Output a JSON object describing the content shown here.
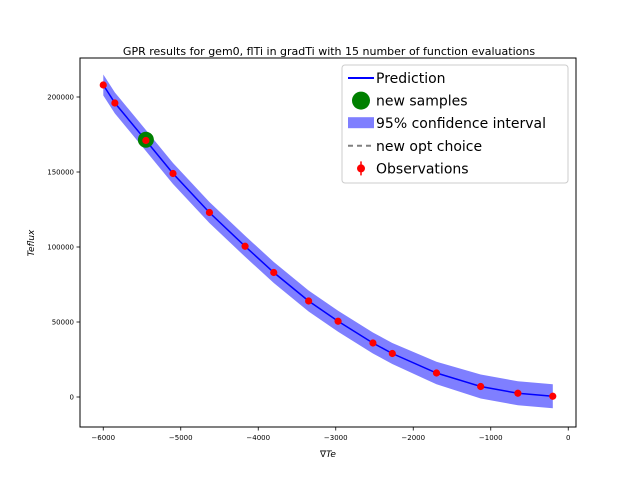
{
  "chart_data": {
    "type": "line",
    "title": "GPR results for gem0, flTi in gradTi with 15 number of function evaluations",
    "xlabel": "∇Te",
    "ylabel": "Teflux",
    "xlim": [
      -6300,
      100
    ],
    "ylim": [
      -20000,
      226000
    ],
    "xticks": [
      -6000,
      -5000,
      -4000,
      -3000,
      -2000,
      -1000,
      0
    ],
    "yticks": [
      0,
      50000,
      100000,
      150000,
      200000
    ],
    "legend_position": "top-right",
    "legend": [
      {
        "label": "Prediction",
        "kind": "line",
        "color": "#0000ff"
      },
      {
        "label": "new samples",
        "kind": "marker",
        "color": "#008000"
      },
      {
        "label": "95% confidence interval",
        "kind": "patch",
        "color": "#7f7fff"
      },
      {
        "label": "new opt choice",
        "kind": "dashed",
        "color": "#808080"
      },
      {
        "label": "Observations",
        "kind": "errorbar",
        "color": "#ff0000"
      }
    ],
    "prediction": {
      "x": [
        -6000,
        -5850,
        -5450,
        -5100,
        -4630,
        -4170,
        -3800,
        -3350,
        -2970,
        -2520,
        -2270,
        -1700,
        -1130,
        -650,
        -200
      ],
      "y": [
        208000,
        196000,
        171000,
        149000,
        123000,
        100500,
        83000,
        64000,
        50500,
        36000,
        29000,
        16000,
        7000,
        2500,
        500
      ]
    },
    "confidence_interval": {
      "x": [
        -6000,
        -5850,
        -5450,
        -5100,
        -4630,
        -4170,
        -3800,
        -3350,
        -2970,
        -2520,
        -2270,
        -1700,
        -1130,
        -650,
        -200
      ],
      "halfwidth": [
        7000,
        7000,
        7000,
        7000,
        7000,
        7000,
        7000,
        7000,
        7000,
        7000,
        7000,
        7500,
        8000,
        8000,
        8000
      ]
    },
    "observations": {
      "x": [
        -6000,
        -5850,
        -5450,
        -5100,
        -4630,
        -4170,
        -3800,
        -3350,
        -2970,
        -2520,
        -2270,
        -1700,
        -1130,
        -650,
        -200
      ],
      "y": [
        208000,
        196000,
        171000,
        149000,
        123000,
        100500,
        83000,
        64000,
        50500,
        36000,
        29000,
        16000,
        7000,
        2500,
        500
      ]
    },
    "new_samples": {
      "x": [
        -5450
      ],
      "y": [
        171500
      ]
    }
  }
}
